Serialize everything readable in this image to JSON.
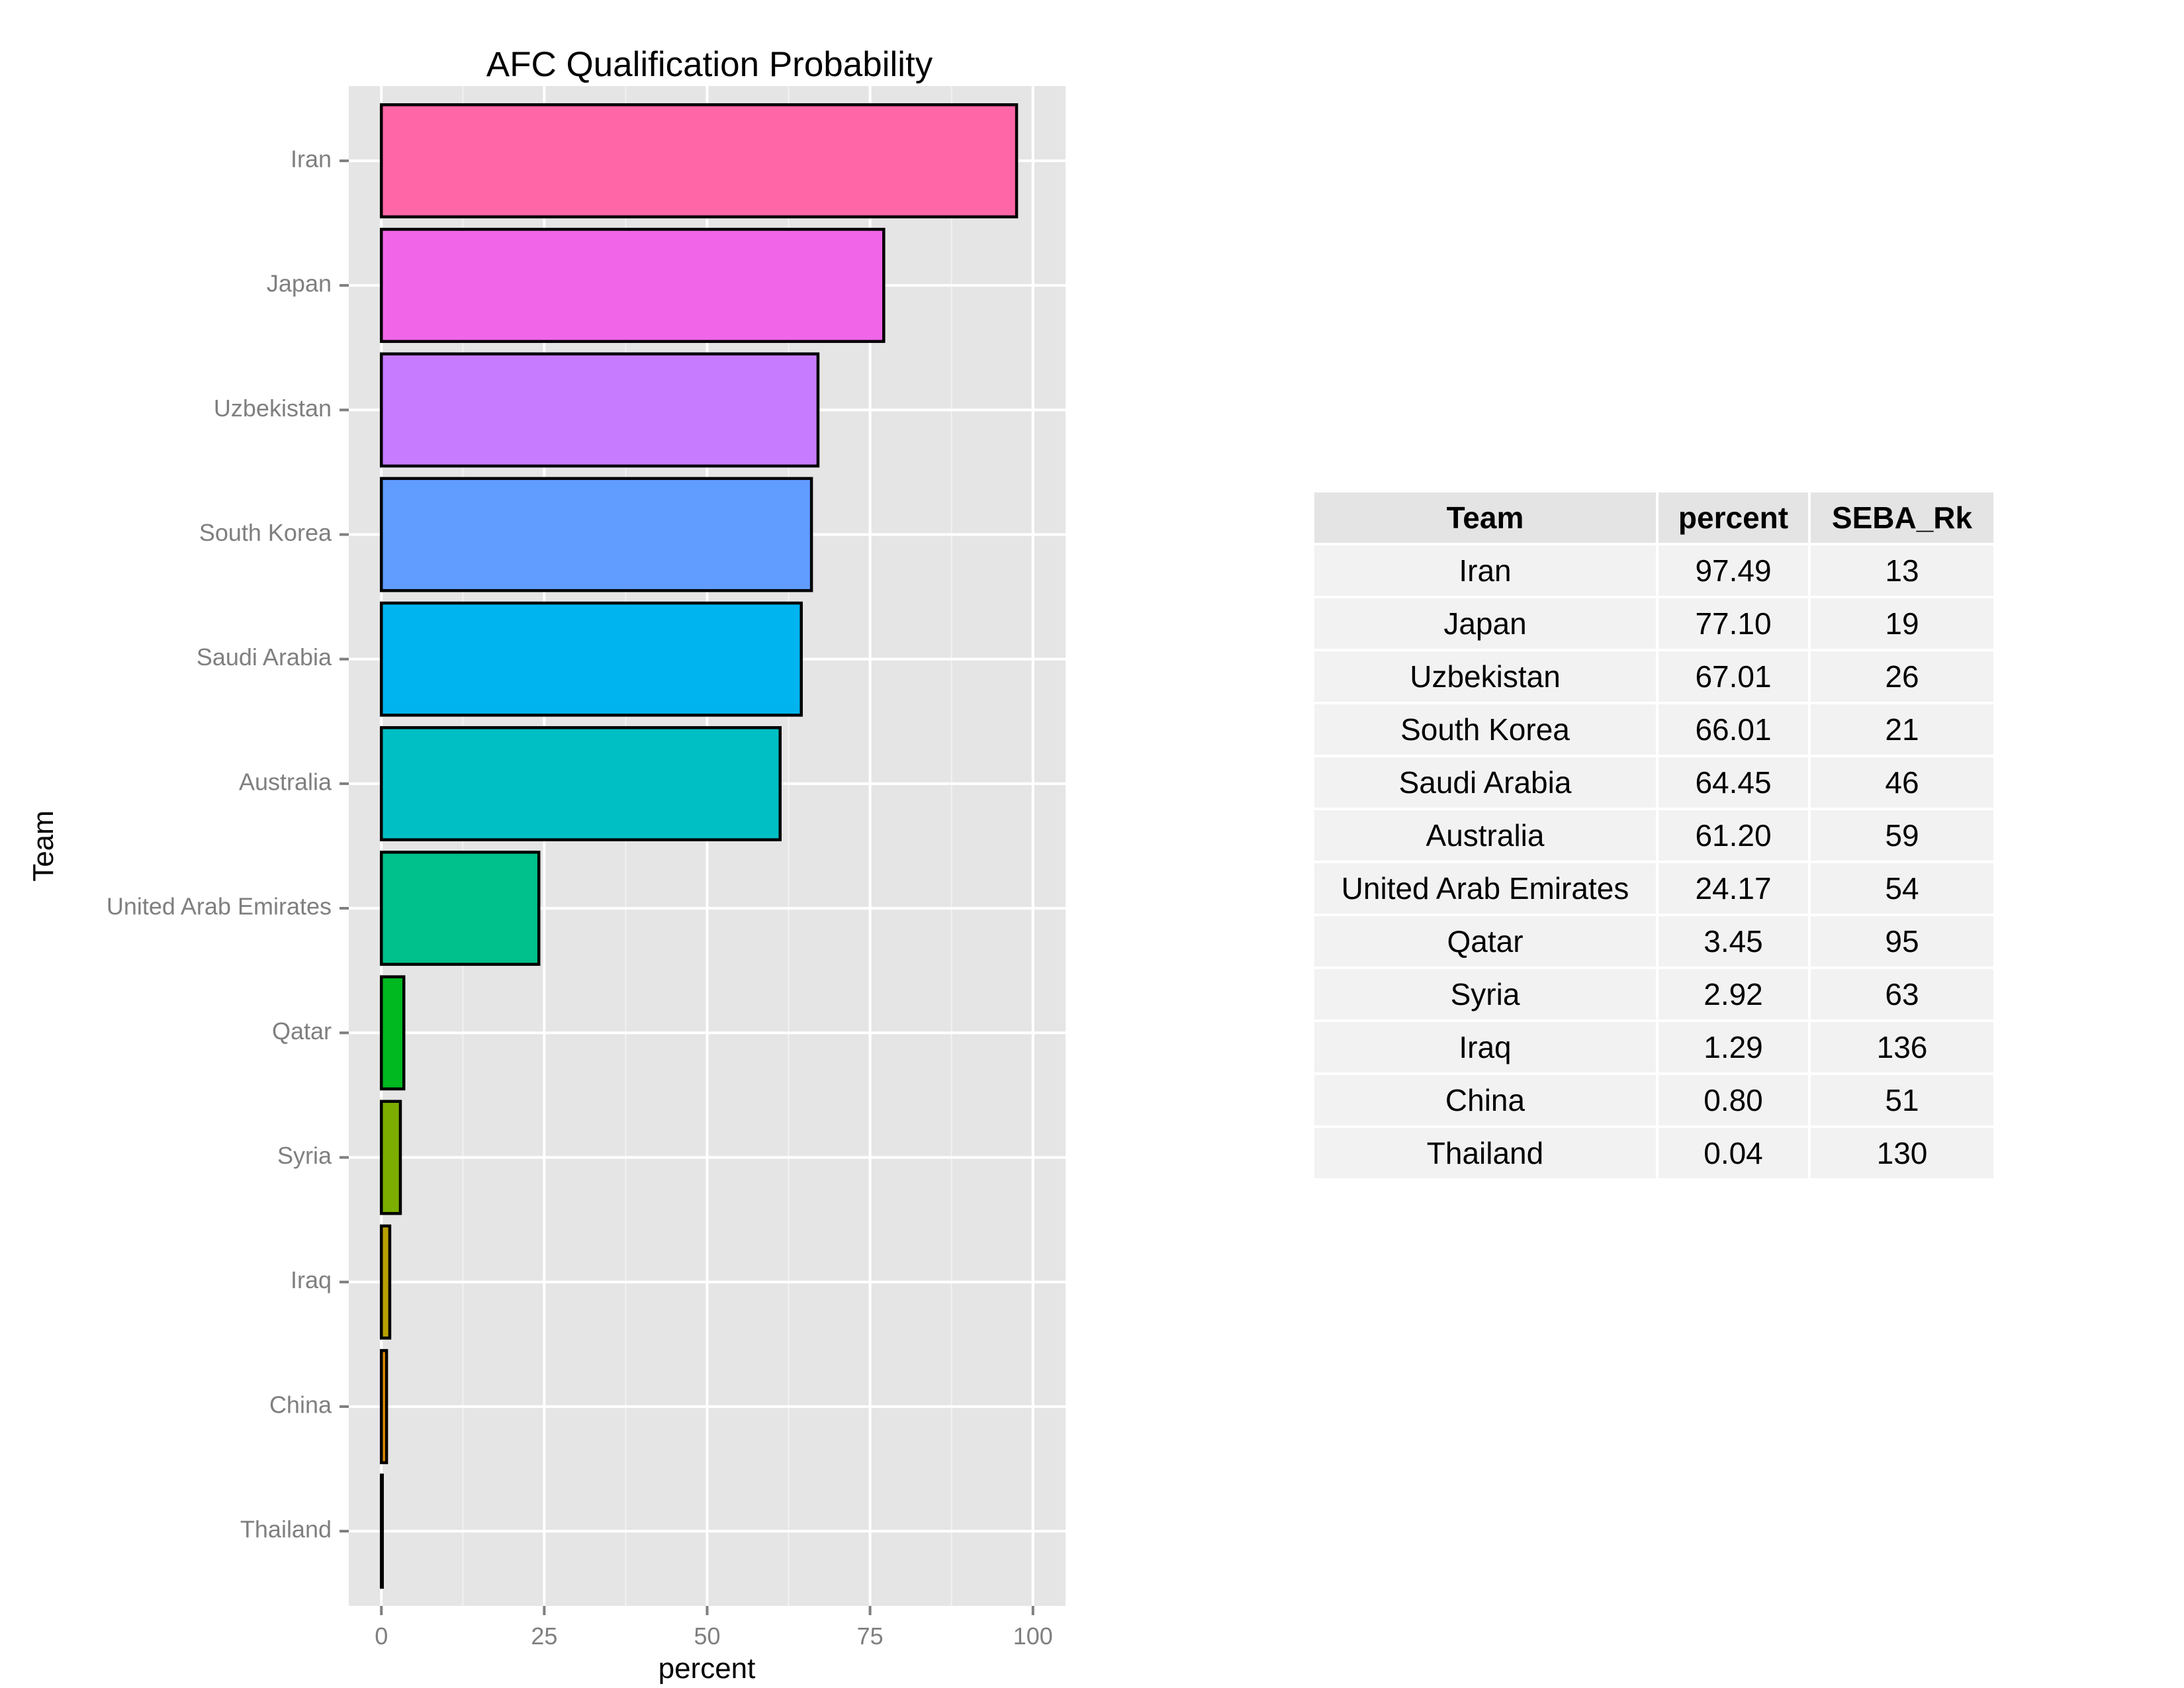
{
  "chart_data": {
    "type": "bar",
    "orientation": "horizontal",
    "title": "AFC Qualification Probability",
    "xlabel": "percent",
    "ylabel": "Team",
    "xlim": [
      -5,
      105
    ],
    "xticks": [
      0,
      25,
      50,
      75,
      100
    ],
    "categories": [
      "Iran",
      "Japan",
      "Uzbekistan",
      "South Korea",
      "Saudi Arabia",
      "Australia",
      "United Arab Emirates",
      "Qatar",
      "Syria",
      "Iraq",
      "China",
      "Thailand"
    ],
    "values": [
      97.49,
      77.1,
      67.01,
      66.01,
      64.45,
      61.2,
      24.17,
      3.45,
      2.92,
      1.29,
      0.8,
      0.04
    ],
    "colors": [
      "#FF66A8",
      "#F166E8",
      "#C77CFF",
      "#619CFF",
      "#00B4EF",
      "#00BFC4",
      "#00C08B",
      "#00B81F",
      "#7CAE00",
      "#B79F00",
      "#DE8C00",
      "#F8766D"
    ],
    "grid": true,
    "legend": "none"
  },
  "table": {
    "headers": [
      "Team",
      "percent",
      "SEBA_Rk"
    ],
    "rows": [
      [
        "Iran",
        "97.49",
        "13"
      ],
      [
        "Japan",
        "77.10",
        "19"
      ],
      [
        "Uzbekistan",
        "67.01",
        "26"
      ],
      [
        "South Korea",
        "66.01",
        "21"
      ],
      [
        "Saudi Arabia",
        "64.45",
        "46"
      ],
      [
        "Australia",
        "61.20",
        "59"
      ],
      [
        "United Arab Emirates",
        "24.17",
        "54"
      ],
      [
        "Qatar",
        "3.45",
        "95"
      ],
      [
        "Syria",
        "2.92",
        "63"
      ],
      [
        "Iraq",
        "1.29",
        "136"
      ],
      [
        "China",
        "0.80",
        "51"
      ],
      [
        "Thailand",
        "0.04",
        "130"
      ]
    ]
  }
}
